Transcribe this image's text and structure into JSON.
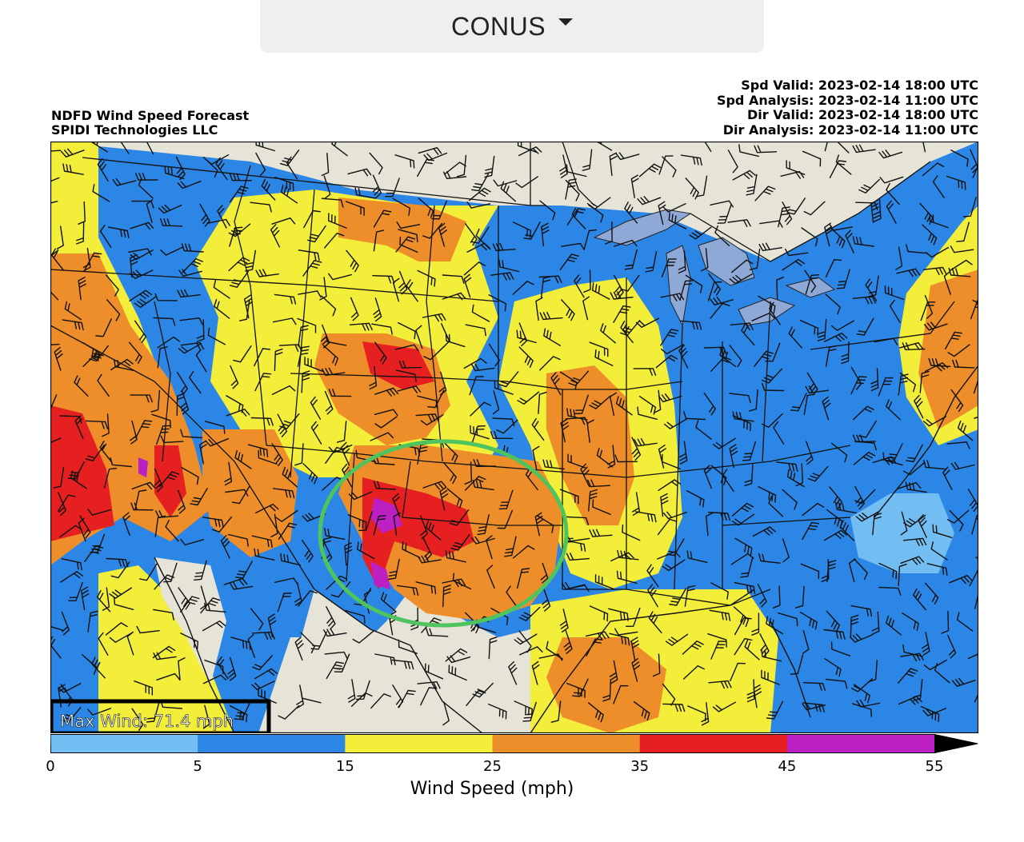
{
  "region_selector": {
    "value": "CONUS"
  },
  "title": {
    "line1": "NDFD Wind Speed Forecast",
    "line2": "SPIDI Technologies LLC"
  },
  "validity": [
    "Spd Valid: 2023-02-14 18:00 UTC",
    "Spd Analysis: 2023-02-14 11:00 UTC",
    "Dir Valid: 2023-02-14 18:00 UTC",
    "Dir Analysis: 2023-02-14 11:00 UTC"
  ],
  "max_wind_label": "Max Wind: 71.4 mph",
  "colorbar": {
    "title": "Wind Speed (mph)",
    "ticks": [
      "0",
      "5",
      "15",
      "25",
      "35",
      "45",
      "55"
    ],
    "bins": [
      {
        "from": 0,
        "to": 5,
        "color": "#72bdf2"
      },
      {
        "from": 5,
        "to": 15,
        "color": "#2c86e5"
      },
      {
        "from": 15,
        "to": 25,
        "color": "#f3ee3a"
      },
      {
        "from": 25,
        "to": 35,
        "color": "#ee8e2a"
      },
      {
        "from": 35,
        "to": 45,
        "color": "#e62020"
      },
      {
        "from": 45,
        "to": 55,
        "color": "#bc1fc2"
      }
    ],
    "extend_color": "#000000"
  },
  "colors": {
    "land_background": "#e6e4d7",
    "water": "#8ea9d6",
    "highlight_circle": "#4ec35e"
  }
}
